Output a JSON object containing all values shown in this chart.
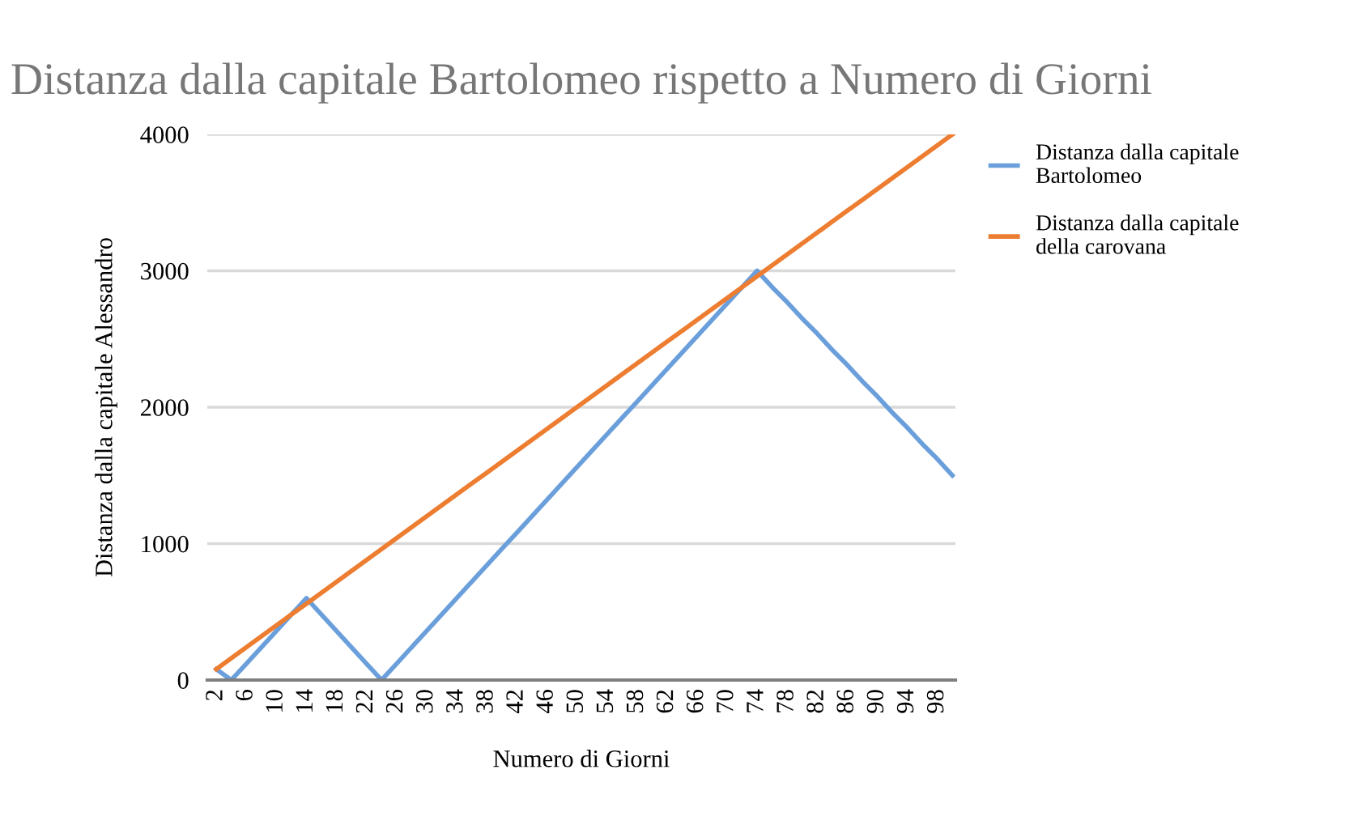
{
  "chart_data": {
    "type": "line",
    "title": "Distanza dalla capitale Bartolomeo rispetto a Numero di Giorni",
    "xlabel": "Numero di Giorni",
    "ylabel": "Distanza dalla capitale Alessandro",
    "categories": [
      "2",
      null,
      "6",
      null,
      "10",
      null,
      "14",
      null,
      "18",
      null,
      "22",
      null,
      "26",
      null,
      "30",
      null,
      "34",
      null,
      "38",
      null,
      "42",
      null,
      "46",
      null,
      "50",
      null,
      "54",
      null,
      "58",
      null,
      "62",
      null,
      "66",
      null,
      "70",
      null,
      "74",
      null,
      "78",
      null,
      "82",
      null,
      "86",
      null,
      "90",
      null,
      "94",
      null,
      "98",
      null
    ],
    "series": [
      {
        "name": "Distanza dalla capitale\nBartolomeo",
        "color": "#6a9fdb",
        "values": [
          80,
          0,
          120,
          240,
          360,
          480,
          600,
          480,
          360,
          240,
          120,
          0,
          120,
          240,
          360,
          480,
          600,
          720,
          840,
          960,
          1080,
          1200,
          1320,
          1440,
          1560,
          1680,
          1800,
          1920,
          2040,
          2160,
          2280,
          2400,
          2520,
          2640,
          2760,
          2880,
          3000,
          2880,
          2770,
          2650,
          2540,
          2420,
          2310,
          2190,
          2080,
          1960,
          1850,
          1730,
          1620,
          1500
        ]
      },
      {
        "name": "Distanza dalla capitale\ndella carovana",
        "color": "#ed7d31",
        "values": [
          80,
          160,
          240,
          320,
          400,
          480,
          560,
          640,
          720,
          800,
          880,
          960,
          1040,
          1120,
          1200,
          1280,
          1360,
          1440,
          1520,
          1600,
          1680,
          1760,
          1840,
          1920,
          2000,
          2080,
          2160,
          2240,
          2320,
          2400,
          2480,
          2560,
          2640,
          2720,
          2800,
          2880,
          2960,
          3040,
          3120,
          3200,
          3280,
          3360,
          3440,
          3520,
          3600,
          3680,
          3760,
          3840,
          3920,
          4000
        ]
      }
    ],
    "ylim": [
      0,
      4000
    ],
    "yticks": [
      0,
      1000,
      2000,
      3000,
      4000
    ],
    "grid": "y",
    "legend": "right",
    "marker": "none",
    "line_style": "solid"
  }
}
